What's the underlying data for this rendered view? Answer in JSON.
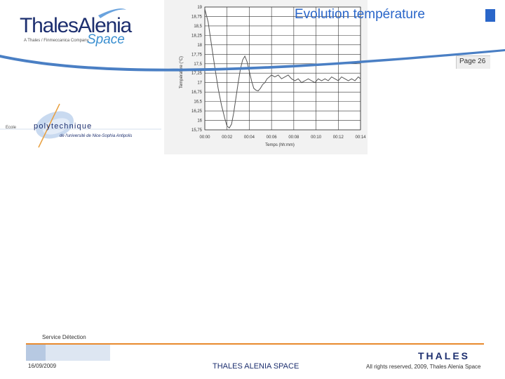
{
  "header": {
    "logo_main": "ThalesAlenia",
    "logo_sub": "A Thales / Finmeccanica Company",
    "logo_space": "Space",
    "title": "Evolution température",
    "page_label": "Page 26",
    "school_logo": {
      "ecole": "Ecole",
      "name": "polytechnique",
      "subtitle": "de l'université de Nice-Sophia Antipolis"
    }
  },
  "colors": {
    "title_blue": "#2a66c9",
    "brand_navy": "#1d2f6f",
    "swoosh_blue": "#4a7fc4",
    "footer_orange": "#e88a2e"
  },
  "chart_data": {
    "type": "line",
    "xlabel": "Temps (hh:mm)",
    "ylabel": "Température (°C)",
    "x_ticks": [
      "00:00",
      "00:02",
      "00:04",
      "00:06",
      "00:08",
      "00:10",
      "00:12",
      "00:14"
    ],
    "y_ticks": [
      "19",
      "18,75",
      "18,5",
      "18,25",
      "18",
      "17,75",
      "17,5",
      "17,25",
      "17",
      "16,75",
      "16,5",
      "16,25",
      "16",
      "15,75"
    ],
    "xlim": [
      0,
      14
    ],
    "ylim": [
      15.75,
      19
    ],
    "grid": true,
    "series": [
      {
        "x": [
          0,
          0.3,
          0.6,
          0.9,
          1.2,
          1.5,
          1.8,
          2.0,
          2.2,
          2.4,
          2.6,
          2.8,
          3.0,
          3.2,
          3.4,
          3.6,
          3.8,
          4.0,
          4.2,
          4.4,
          4.6,
          4.8,
          5.0,
          5.2,
          5.4,
          5.6,
          5.8,
          6.0,
          6.3,
          6.6,
          6.9,
          7.2,
          7.5,
          7.8,
          8.1,
          8.4,
          8.7,
          9.0,
          9.3,
          9.6,
          9.9,
          10.2,
          10.5,
          10.8,
          11.1,
          11.4,
          11.7,
          12.0,
          12.3,
          12.6,
          12.9,
          13.2,
          13.5,
          13.8,
          14.0
        ],
        "values": [
          18.95,
          18.6,
          18.0,
          17.4,
          16.85,
          16.4,
          16.05,
          15.85,
          15.8,
          15.9,
          16.2,
          16.6,
          17.0,
          17.35,
          17.6,
          17.7,
          17.55,
          17.3,
          17.05,
          16.85,
          16.8,
          16.78,
          16.85,
          16.95,
          17.0,
          17.1,
          17.15,
          17.2,
          17.15,
          17.2,
          17.1,
          17.15,
          17.2,
          17.1,
          17.05,
          17.1,
          17.0,
          17.05,
          17.1,
          17.05,
          17.0,
          17.1,
          17.05,
          17.1,
          17.05,
          17.15,
          17.1,
          17.05,
          17.15,
          17.1,
          17.05,
          17.1,
          17.05,
          17.15,
          17.1
        ]
      }
    ]
  },
  "footer": {
    "service": "Service Détection",
    "date": "16/09/2009",
    "company": "THALES ALENIA SPACE",
    "thales_logo": "THALES",
    "rights": "All rights reserved, 2009, Thales Alenia Space"
  }
}
